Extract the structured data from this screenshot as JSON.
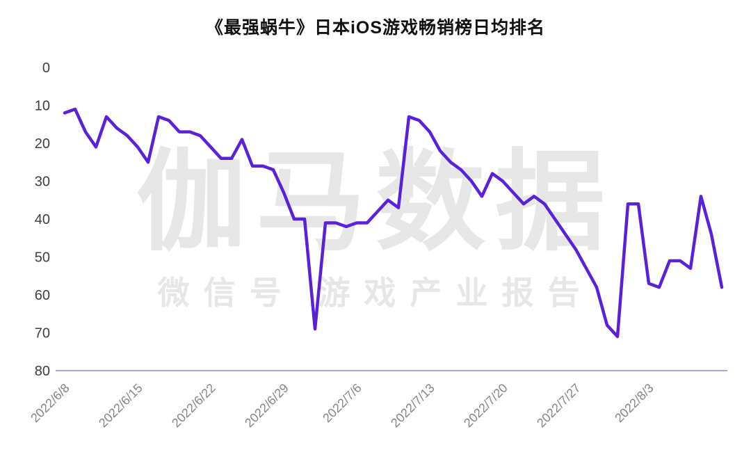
{
  "title": "《最强蜗牛》日本iOS游戏畅销榜日均排名",
  "watermark": {
    "line1": "伽马数据",
    "line2": "微信号  游戏产业报告"
  },
  "chart_data": {
    "type": "line",
    "title": "《最强蜗牛》日本iOS游戏畅销榜日均排名",
    "xlabel": "",
    "ylabel": "",
    "y_axis_inverted": true,
    "ylim": [
      0,
      80
    ],
    "y_ticks": [
      0,
      10,
      20,
      30,
      40,
      50,
      60,
      70,
      80
    ],
    "grid": false,
    "legend": false,
    "line_color": "#5b21d9",
    "axis_color": "#b3a2e2",
    "x_tick_labels": [
      "2022/6/8",
      "2022/6/15",
      "2022/6/22",
      "2022/6/29",
      "2022/7/6",
      "2022/7/13",
      "2022/7/20",
      "2022/7/27",
      "2022/8/3"
    ],
    "x": [
      "2022/6/8",
      "2022/6/9",
      "2022/6/10",
      "2022/6/11",
      "2022/6/12",
      "2022/6/13",
      "2022/6/14",
      "2022/6/15",
      "2022/6/16",
      "2022/6/17",
      "2022/6/18",
      "2022/6/19",
      "2022/6/20",
      "2022/6/21",
      "2022/6/22",
      "2022/6/23",
      "2022/6/24",
      "2022/6/25",
      "2022/6/26",
      "2022/6/27",
      "2022/6/28",
      "2022/6/29",
      "2022/6/30",
      "2022/7/1",
      "2022/7/2",
      "2022/7/3",
      "2022/7/4",
      "2022/7/5",
      "2022/7/6",
      "2022/7/7",
      "2022/7/8",
      "2022/7/9",
      "2022/7/10",
      "2022/7/11",
      "2022/7/12",
      "2022/7/13",
      "2022/7/14",
      "2022/7/15",
      "2022/7/16",
      "2022/7/17",
      "2022/7/18",
      "2022/7/19",
      "2022/7/20",
      "2022/7/21",
      "2022/7/22",
      "2022/7/23",
      "2022/7/24",
      "2022/7/25",
      "2022/7/26",
      "2022/7/27",
      "2022/7/28",
      "2022/7/29",
      "2022/7/30",
      "2022/7/31",
      "2022/8/1",
      "2022/8/2",
      "2022/8/3",
      "2022/8/4",
      "2022/8/5",
      "2022/8/6",
      "2022/8/7",
      "2022/8/8",
      "2022/8/9",
      "2022/8/10"
    ],
    "values": [
      12,
      11,
      17,
      21,
      13,
      16,
      18,
      21,
      25,
      13,
      14,
      17,
      17,
      18,
      21,
      24,
      24,
      19,
      26,
      26,
      27,
      33,
      40,
      40,
      69,
      41,
      41,
      42,
      41,
      41,
      38,
      35,
      37,
      13,
      14,
      17,
      22,
      25,
      27,
      30,
      34,
      28,
      30,
      33,
      36,
      34,
      36,
      40,
      44,
      48,
      53,
      58,
      68,
      71,
      36,
      36,
      57,
      58,
      51,
      51,
      53,
      34,
      44,
      58
    ]
  }
}
